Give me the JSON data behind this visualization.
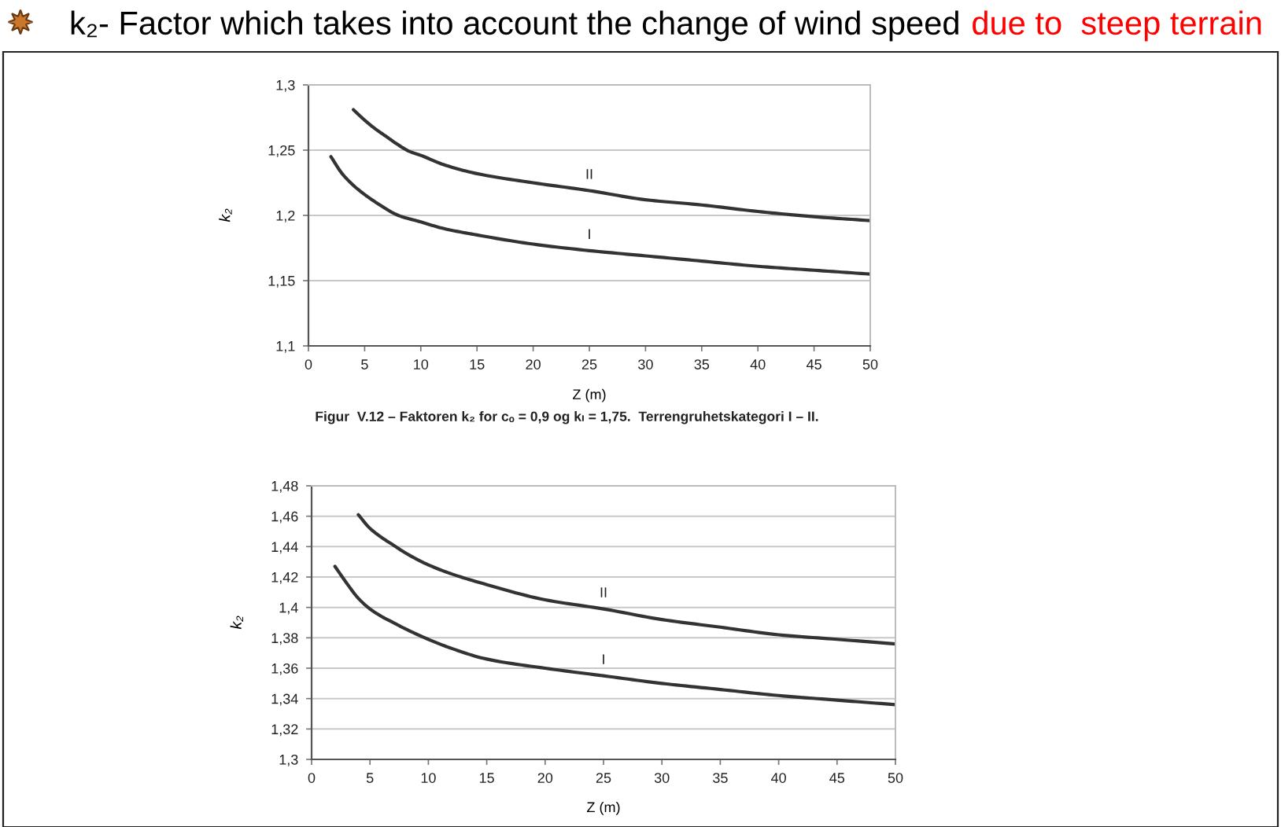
{
  "chart_data": [
    {
      "type": "other",
      "title": "k₂- Factor which takes into account the change of wind speed",
      "subtitle": "due to  steep terrain"
    },
    {
      "type": "line",
      "xlabel": "Z (m)",
      "ylabel": "k₂",
      "line_style": "solid",
      "grid": "y",
      "xlim": [
        0,
        50
      ],
      "xticks": [
        0,
        5,
        10,
        15,
        20,
        25,
        30,
        35,
        40,
        45,
        50
      ],
      "ylim": [
        1.1,
        1.3
      ],
      "yticks": [
        {
          "value": 1.1,
          "label": "1,1"
        },
        {
          "value": 1.15,
          "label": "1,15"
        },
        {
          "value": 1.2,
          "label": "1,2"
        },
        {
          "value": 1.25,
          "label": "1,25"
        },
        {
          "value": 1.3,
          "label": "1,3"
        }
      ],
      "series": [
        {
          "name": "I",
          "color": "#333333",
          "x": [
            2,
            3,
            4,
            5,
            6,
            8,
            10,
            12,
            15,
            20,
            25,
            30,
            35,
            40,
            45,
            50
          ],
          "values": [
            1.245,
            1.232,
            1.223,
            1.216,
            1.21,
            1.2,
            1.195,
            1.19,
            1.185,
            1.178,
            1.173,
            1.169,
            1.165,
            1.161,
            1.158,
            1.155
          ]
        },
        {
          "name": "II",
          "color": "#333333",
          "x": [
            4,
            5,
            6,
            7,
            8,
            9,
            10,
            12,
            15,
            20,
            25,
            30,
            35,
            40,
            45,
            50
          ],
          "values": [
            1.281,
            1.273,
            1.266,
            1.26,
            1.254,
            1.249,
            1.246,
            1.239,
            1.232,
            1.225,
            1.219,
            1.212,
            1.208,
            1.203,
            1.199,
            1.196
          ]
        }
      ],
      "annotations": [
        "Figur  V.12 – Faktoren k₂ for cₒ = 0,9 og kₗ = 1,75.  Terrengruhetskategori I – II."
      ]
    },
    {
      "type": "line",
      "xlabel": "Z (m)",
      "ylabel": "k₂",
      "line_style": "solid",
      "grid": "y",
      "xlim": [
        0,
        50
      ],
      "xticks": [
        0,
        5,
        10,
        15,
        20,
        25,
        30,
        35,
        40,
        45,
        50
      ],
      "ylim": [
        1.3,
        1.48
      ],
      "yticks": [
        {
          "value": 1.3,
          "label": "1,3"
        },
        {
          "value": 1.32,
          "label": "1,32"
        },
        {
          "value": 1.34,
          "label": "1,34"
        },
        {
          "value": 1.36,
          "label": "1,36"
        },
        {
          "value": 1.38,
          "label": "1,38"
        },
        {
          "value": 1.4,
          "label": "1,4"
        },
        {
          "value": 1.42,
          "label": "1,42"
        },
        {
          "value": 1.44,
          "label": "1,44"
        },
        {
          "value": 1.46,
          "label": "1,46"
        },
        {
          "value": 1.48,
          "label": "1,48"
        }
      ],
      "series": [
        {
          "name": "I",
          "color": "#333333",
          "x": [
            2,
            3,
            4,
            5,
            6,
            7,
            8,
            10,
            12,
            15,
            20,
            25,
            30,
            35,
            40,
            45,
            50
          ],
          "values": [
            1.427,
            1.416,
            1.406,
            1.399,
            1.394,
            1.39,
            1.386,
            1.379,
            1.373,
            1.366,
            1.36,
            1.355,
            1.35,
            1.346,
            1.342,
            1.339,
            1.336
          ]
        },
        {
          "name": "II",
          "color": "#333333",
          "x": [
            4,
            5,
            6,
            7,
            8,
            10,
            12,
            15,
            20,
            25,
            30,
            35,
            40,
            45,
            50
          ],
          "values": [
            1.461,
            1.452,
            1.446,
            1.441,
            1.436,
            1.428,
            1.422,
            1.415,
            1.405,
            1.399,
            1.392,
            1.387,
            1.382,
            1.379,
            1.376
          ]
        }
      ]
    }
  ]
}
